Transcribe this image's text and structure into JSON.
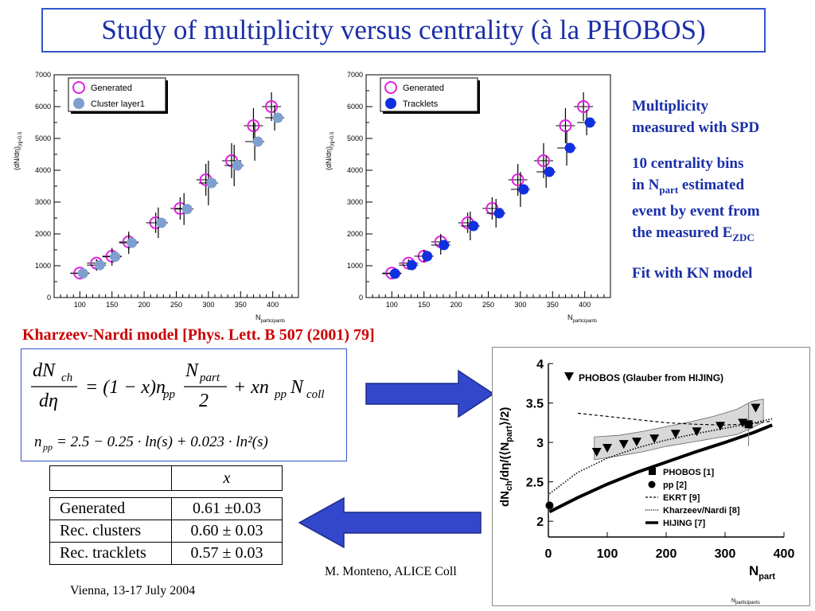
{
  "title": "Study of multiplicity versus centrality (à la PHOBOS)",
  "side_notes": {
    "line1": "Multiplicity",
    "line2": "measured with SPD",
    "bins_line1": "10 centrality bins",
    "bins_line2_prefix": "in N",
    "bins_line2_sub": "part",
    "bins_line2_suffix": " estimated",
    "bins_line3": "event by event from",
    "bins_line4_prefix": "the measured E",
    "bins_line4_sub": "ZDC",
    "fit": "Fit with KN model"
  },
  "kn_reference": "Kharzeev-Nardi model [Phys. Lett. B 507 (2001) 79]",
  "formula": {
    "main": "dN_ch/dη = (1 − x) n_pp N_part / 2 + x n_pp N_coll",
    "npp": "n_pp = 2.5 − 0.25 · ln(s) + 0.023 · ln²(s)"
  },
  "table": {
    "header": "x",
    "rows": [
      {
        "label": "Generated",
        "value": "0.61 ±0.03"
      },
      {
        "label": "Rec. clusters",
        "value": "0.60 ± 0.03"
      },
      {
        "label": "Rec. tracklets",
        "value": "0.57 ± 0.03"
      }
    ]
  },
  "footer": {
    "author": "M. Monteno, ALICE Coll",
    "date": "Vienna, 13-17 July 2004"
  },
  "colors": {
    "title": "#1a2fa8",
    "generated": "#e020e0",
    "clusters": "#7f9fcf",
    "tracklets": "#1030e0",
    "arrow": "#3347cc",
    "reference": "#cc0000"
  },
  "chart_data": [
    {
      "type": "scatter",
      "title": "",
      "xlabel": "N_participants",
      "ylabel": "(dN/dη)_|η|<0.5",
      "xlim": [
        60,
        440
      ],
      "ylim": [
        0,
        7000
      ],
      "xticks": [
        100,
        150,
        200,
        250,
        300,
        350,
        400
      ],
      "yticks": [
        0,
        1000,
        2000,
        3000,
        4000,
        5000,
        6000,
        7000
      ],
      "legend_position": "top-left",
      "series": [
        {
          "name": "Generated",
          "marker": "open-circle",
          "color": "#e020e0",
          "x": [
            100,
            126,
            150,
            176,
            218,
            256,
            296,
            336,
            370,
            398
          ],
          "y": [
            770,
            1080,
            1300,
            1750,
            2350,
            2800,
            3700,
            4300,
            5400,
            6000
          ],
          "yerr": [
            80,
            120,
            160,
            250,
            320,
            350,
            500,
            550,
            550,
            450
          ]
        },
        {
          "name": "Cluster layer1",
          "marker": "filled-circle",
          "color": "#7f9fcf",
          "x": [
            100,
            126,
            150,
            176,
            222,
            262,
            300,
            340,
            372,
            403
          ],
          "y": [
            760,
            1020,
            1280,
            1720,
            2350,
            2780,
            3600,
            4150,
            4900,
            5650
          ],
          "yerr": [
            100,
            180,
            280,
            350,
            480,
            500,
            700,
            650,
            600,
            400
          ]
        }
      ]
    },
    {
      "type": "scatter",
      "title": "",
      "xlabel": "N_participants",
      "ylabel": "(dN/dη)_|η|<0.5",
      "xlim": [
        60,
        440
      ],
      "ylim": [
        0,
        7000
      ],
      "xticks": [
        100,
        150,
        200,
        250,
        300,
        350,
        400
      ],
      "yticks": [
        0,
        1000,
        2000,
        3000,
        4000,
        5000,
        6000,
        7000
      ],
      "legend_position": "top-left",
      "series": [
        {
          "name": "Generated",
          "marker": "open-circle",
          "color": "#e020e0",
          "x": [
            100,
            126,
            150,
            176,
            218,
            256,
            296,
            336,
            370,
            398
          ],
          "y": [
            770,
            1080,
            1300,
            1750,
            2350,
            2800,
            3700,
            4300,
            5400,
            6000
          ],
          "yerr": [
            80,
            120,
            160,
            250,
            320,
            350,
            500,
            550,
            550,
            450
          ]
        },
        {
          "name": "Tracklets",
          "marker": "filled-circle",
          "color": "#1030e0",
          "x": [
            100,
            126,
            150,
            176,
            222,
            262,
            300,
            340,
            372,
            403
          ],
          "y": [
            750,
            1020,
            1300,
            1650,
            2250,
            2650,
            3400,
            3950,
            4700,
            5500
          ],
          "yerr": [
            100,
            150,
            200,
            300,
            450,
            450,
            550,
            500,
            550,
            400
          ]
        }
      ]
    },
    {
      "type": "line",
      "title": "",
      "xlabel": "N_part",
      "ylabel": "dN_ch/dη/(⟨N_part⟩/2)",
      "xlim": [
        0,
        400
      ],
      "ylim": [
        1.8,
        4.0
      ],
      "xticks": [
        0,
        100,
        200,
        300,
        400
      ],
      "yticks": [
        2,
        2.5,
        3,
        3.5,
        4
      ],
      "top_legend": "PHOBOS (Glauber from HIJING)",
      "legend_position": "bottom-right",
      "series": [
        {
          "name": "PHOBOS (Glauber from HIJING)",
          "marker": "down-triangle",
          "x": [
            82,
            100,
            128,
            150,
            180,
            216,
            252,
            292,
            330,
            352
          ],
          "y": [
            2.88,
            2.93,
            2.98,
            3.01,
            3.05,
            3.11,
            3.14,
            3.21,
            3.25,
            3.44
          ]
        },
        {
          "name": "PHOBOS [1]",
          "marker": "square",
          "x": [
            340
          ],
          "y": [
            3.23
          ]
        },
        {
          "name": "pp [2]",
          "marker": "circle",
          "x": [
            2
          ],
          "y": [
            2.2
          ]
        },
        {
          "name": "EKRT [9]",
          "style": "dashed",
          "x": [
            50,
            100,
            150,
            200,
            250,
            300,
            350,
            380
          ],
          "y": [
            3.37,
            3.33,
            3.29,
            3.25,
            3.23,
            3.22,
            3.24,
            3.27
          ]
        },
        {
          "name": "Kharzeev/Nardi [8]",
          "style": "dotted",
          "x": [
            2,
            50,
            100,
            150,
            200,
            250,
            300,
            350,
            380
          ],
          "y": [
            2.35,
            2.62,
            2.8,
            2.93,
            3.03,
            3.11,
            3.18,
            3.25,
            3.3
          ]
        },
        {
          "name": "HIJING [7]",
          "style": "thick",
          "x": [
            2,
            50,
            100,
            150,
            200,
            250,
            300,
            350,
            380
          ],
          "y": [
            2.12,
            2.3,
            2.47,
            2.62,
            2.75,
            2.88,
            3.0,
            3.13,
            3.22
          ]
        }
      ],
      "band": {
        "x": [
          78,
          120,
          160,
          200,
          240,
          280,
          320,
          345,
          365
        ],
        "lower": [
          2.78,
          2.83,
          2.88,
          2.95,
          3.0,
          3.05,
          3.1,
          3.18,
          3.26
        ],
        "upper": [
          3.07,
          3.09,
          3.14,
          3.2,
          3.26,
          3.33,
          3.42,
          3.52,
          3.55
        ]
      }
    }
  ]
}
